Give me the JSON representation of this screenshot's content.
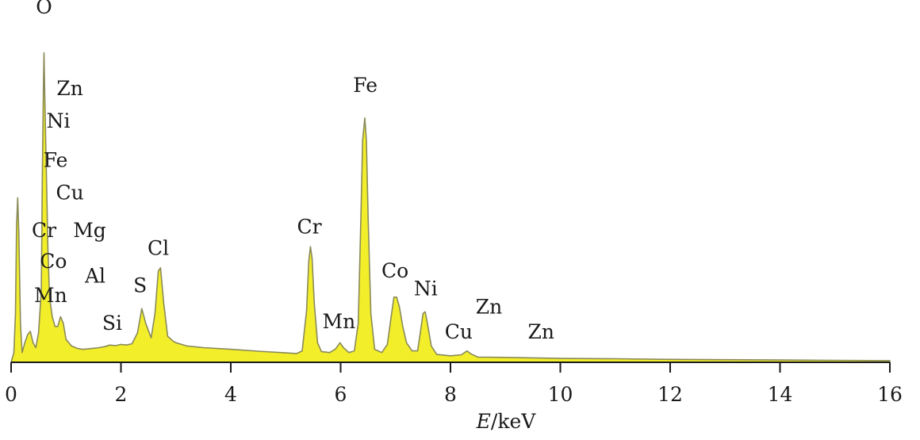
{
  "chart_data": {
    "type": "area",
    "xlabel_italic": "E",
    "xlabel_rest": "/keV",
    "xlim": [
      0,
      16
    ],
    "ylim": [
      0,
      100
    ],
    "x_ticks": [
      0,
      2,
      4,
      6,
      8,
      10,
      12,
      14,
      16
    ],
    "y_axis_visible": false,
    "grid": false,
    "fill_color": "#f2ee2a",
    "line_color": "#8a8a5a",
    "spectrum": [
      [
        0.0,
        0
      ],
      [
        0.05,
        3
      ],
      [
        0.08,
        15
      ],
      [
        0.1,
        42
      ],
      [
        0.12,
        50.5
      ],
      [
        0.14,
        40
      ],
      [
        0.17,
        12
      ],
      [
        0.2,
        3
      ],
      [
        0.25,
        6
      ],
      [
        0.3,
        8.5
      ],
      [
        0.35,
        9.5
      ],
      [
        0.4,
        6
      ],
      [
        0.45,
        4.5
      ],
      [
        0.5,
        9
      ],
      [
        0.55,
        22
      ],
      [
        0.57,
        60
      ],
      [
        0.59,
        87
      ],
      [
        0.6,
        95
      ],
      [
        0.61,
        85
      ],
      [
        0.63,
        68
      ],
      [
        0.65,
        52
      ],
      [
        0.67,
        35
      ],
      [
        0.7,
        20
      ],
      [
        0.75,
        14
      ],
      [
        0.8,
        11
      ],
      [
        0.85,
        11
      ],
      [
        0.9,
        14
      ],
      [
        0.95,
        12
      ],
      [
        1.0,
        7
      ],
      [
        1.1,
        5
      ],
      [
        1.2,
        4.3
      ],
      [
        1.3,
        4
      ],
      [
        1.4,
        4.1
      ],
      [
        1.5,
        4.3
      ],
      [
        1.6,
        4.5
      ],
      [
        1.7,
        4.8
      ],
      [
        1.8,
        5.3
      ],
      [
        1.9,
        5.1
      ],
      [
        2.0,
        5.5
      ],
      [
        2.1,
        5.3
      ],
      [
        2.2,
        5.7
      ],
      [
        2.3,
        9
      ],
      [
        2.38,
        16.5
      ],
      [
        2.45,
        12
      ],
      [
        2.55,
        7.5
      ],
      [
        2.62,
        15
      ],
      [
        2.68,
        28
      ],
      [
        2.72,
        29
      ],
      [
        2.78,
        18
      ],
      [
        2.85,
        8
      ],
      [
        2.95,
        6.5
      ],
      [
        3.0,
        6
      ],
      [
        3.2,
        5
      ],
      [
        3.5,
        4.5
      ],
      [
        4.0,
        4
      ],
      [
        4.5,
        3.4
      ],
      [
        5.0,
        2.9
      ],
      [
        5.2,
        2.7
      ],
      [
        5.3,
        3.5
      ],
      [
        5.38,
        16
      ],
      [
        5.42,
        31
      ],
      [
        5.45,
        35.5
      ],
      [
        5.48,
        32
      ],
      [
        5.52,
        18
      ],
      [
        5.58,
        6
      ],
      [
        5.65,
        3.3
      ],
      [
        5.8,
        3
      ],
      [
        5.9,
        4
      ],
      [
        5.99,
        6
      ],
      [
        6.05,
        4.5
      ],
      [
        6.15,
        3
      ],
      [
        6.25,
        3.5
      ],
      [
        6.32,
        12
      ],
      [
        6.37,
        45
      ],
      [
        6.4,
        68
      ],
      [
        6.44,
        75
      ],
      [
        6.47,
        68
      ],
      [
        6.5,
        45
      ],
      [
        6.55,
        15
      ],
      [
        6.62,
        4
      ],
      [
        6.75,
        3
      ],
      [
        6.85,
        5.5
      ],
      [
        6.92,
        14
      ],
      [
        6.97,
        20
      ],
      [
        7.02,
        20
      ],
      [
        7.07,
        17
      ],
      [
        7.13,
        11
      ],
      [
        7.2,
        6
      ],
      [
        7.3,
        3.5
      ],
      [
        7.4,
        3.5
      ],
      [
        7.45,
        9
      ],
      [
        7.5,
        15
      ],
      [
        7.54,
        15.5
      ],
      [
        7.58,
        12
      ],
      [
        7.65,
        5
      ],
      [
        7.75,
        2.4
      ],
      [
        8.0,
        2
      ],
      [
        8.2,
        2.3
      ],
      [
        8.3,
        3.5
      ],
      [
        8.38,
        2.5
      ],
      [
        8.5,
        1.6
      ],
      [
        9.0,
        1.5
      ],
      [
        10.0,
        1.2
      ],
      [
        11.0,
        1.1
      ],
      [
        12.0,
        0.9
      ],
      [
        13.0,
        0.8
      ],
      [
        14.0,
        0.7
      ],
      [
        15.0,
        0.6
      ],
      [
        16.0,
        0.5
      ]
    ],
    "peaks": [
      {
        "element": "O",
        "x": 0.6,
        "y": 107
      },
      {
        "element": "Zn",
        "x": 1.07,
        "y": 82
      },
      {
        "element": "Ni",
        "x": 0.86,
        "y": 72
      },
      {
        "element": "Fe",
        "x": 0.81,
        "y": 60
      },
      {
        "element": "Cu",
        "x": 1.07,
        "y": 50
      },
      {
        "element": "Cr",
        "x": 0.6,
        "y": 38.5
      },
      {
        "element": "Mg",
        "x": 1.43,
        "y": 38.5
      },
      {
        "element": "Co",
        "x": 0.77,
        "y": 29
      },
      {
        "element": "Al",
        "x": 1.53,
        "y": 24.5
      },
      {
        "element": "Mn",
        "x": 0.72,
        "y": 18.5
      },
      {
        "element": "S",
        "x": 2.35,
        "y": 21.5
      },
      {
        "element": "Si",
        "x": 1.84,
        "y": 10
      },
      {
        "element": "Cl",
        "x": 2.68,
        "y": 33
      },
      {
        "element": "Cr",
        "x": 5.43,
        "y": 39.5
      },
      {
        "element": "Mn",
        "x": 5.97,
        "y": 10.5
      },
      {
        "element": "Fe",
        "x": 6.45,
        "y": 83
      },
      {
        "element": "Co",
        "x": 6.99,
        "y": 26
      },
      {
        "element": "Ni",
        "x": 7.55,
        "y": 20.5
      },
      {
        "element": "Cu",
        "x": 8.15,
        "y": 7.3
      },
      {
        "element": "Zn",
        "x": 8.7,
        "y": 15
      },
      {
        "element": "Zn",
        "x": 9.65,
        "y": 7.3
      }
    ]
  }
}
